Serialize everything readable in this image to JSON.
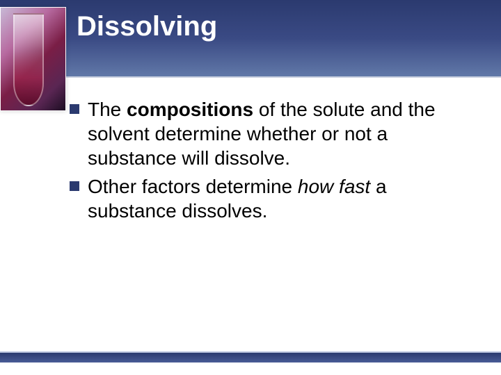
{
  "slide": {
    "title": "Dissolving",
    "title_fontsize": 40,
    "title_color": "#ffffff",
    "header_gradient_top": "#2b3a6f",
    "header_gradient_bottom": "#6178a8",
    "bullets": [
      {
        "segments": [
          {
            "text": "The ",
            "style": ""
          },
          {
            "text": "compositions",
            "style": "bold"
          },
          {
            "text": " of the solute and the solvent determine whether or not a substance will dissolve.",
            "style": ""
          }
        ]
      },
      {
        "segments": [
          {
            "text": "Other factors determine ",
            "style": ""
          },
          {
            "text": "how fast",
            "style": "ital"
          },
          {
            "text": " a substance dissolves.",
            "style": ""
          }
        ]
      }
    ],
    "bullet_fontsize": 28,
    "bullet_lineheight": 1.25,
    "bullet_marker_color": "#2b3a6f",
    "bullet_text_color": "#000000",
    "background_color": "#ffffff",
    "footer_bar_color": "#2b3a6f"
  }
}
